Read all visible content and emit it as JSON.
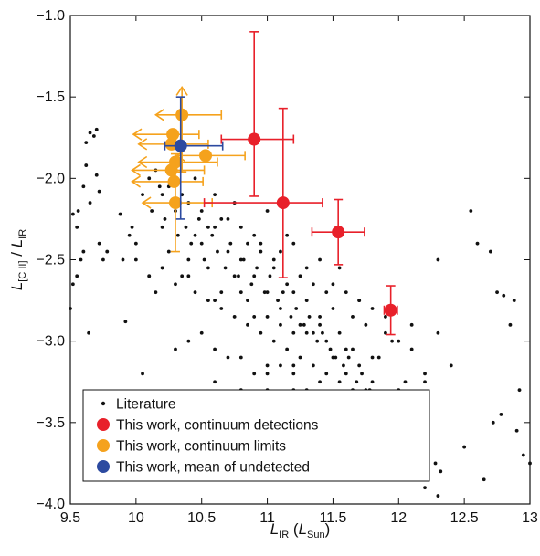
{
  "chart_data": {
    "type": "scatter",
    "title": "",
    "xlabel": {
      "main": "L",
      "sub": "IR",
      "rest_open": " (",
      "unit_main": "L",
      "unit_sub": "Sun",
      "rest_close": ")"
    },
    "ylabel": {
      "main": "L",
      "sub": "[C II]",
      "slash": " / ",
      "main2": "L",
      "sub2": "IR"
    },
    "xlim": [
      9.5,
      13
    ],
    "ylim": [
      -4.0,
      -1.0
    ],
    "xticks": [
      9.5,
      10,
      10.5,
      11,
      11.5,
      12,
      12.5,
      13
    ],
    "xtick_labels": [
      "9.5",
      "10",
      "10.5",
      "11",
      "11.5",
      "12",
      "12.5",
      "13"
    ],
    "yticks": [
      -4.0,
      -3.5,
      -3.0,
      -2.5,
      -2.0,
      -1.5,
      -1.0
    ],
    "ytick_labels": [
      "−4.0",
      "−3.5",
      "−3.0",
      "−2.5",
      "−2.0",
      "−1.5",
      "−1.0"
    ],
    "grid": false,
    "legend_position": "bottom-left",
    "legend": [
      {
        "label": "Literature",
        "color": "#111111",
        "marker": "small-dot"
      },
      {
        "label": "This work, continuum detections",
        "color": "#e8202a",
        "marker": "large-dot"
      },
      {
        "label": "This work, continuum limits",
        "color": "#f5a21d",
        "marker": "large-dot"
      },
      {
        "label": "This work, mean of undetected",
        "color": "#2c4aa0",
        "marker": "large-dot"
      }
    ],
    "colors": {
      "literature": "#111111",
      "detections": "#e8202a",
      "limits": "#f5a21d",
      "mean": "#2c4aa0"
    },
    "series": [
      {
        "name": "Literature",
        "x": [
          9.52,
          9.55,
          9.58,
          9.6,
          9.62,
          9.65,
          9.68,
          9.7,
          9.72,
          9.75,
          9.52,
          9.6,
          9.7,
          9.78,
          9.88,
          9.95,
          9.62,
          9.5,
          9.56,
          9.65,
          9.72,
          9.55,
          9.64,
          9.9,
          9.92,
          9.97,
          10.0,
          10.1,
          10.15,
          10.2,
          10.25,
          10.3,
          10.35,
          10.4,
          10.45,
          10.5,
          10.55,
          10.6,
          10.65,
          10.7,
          10.75,
          10.8,
          10.85,
          10.9,
          10.95,
          11.0,
          11.05,
          11.1,
          11.15,
          11.2,
          11.25,
          11.3,
          11.35,
          11.4,
          11.45,
          11.5,
          11.55,
          11.6,
          11.65,
          11.7,
          11.75,
          11.8,
          11.85,
          11.9,
          11.95,
          12.0,
          12.05,
          12.1,
          12.15,
          10.05,
          10.12,
          10.18,
          10.22,
          10.28,
          10.32,
          10.38,
          10.42,
          10.48,
          10.52,
          10.58,
          10.62,
          10.68,
          10.72,
          10.78,
          10.82,
          10.88,
          10.92,
          10.98,
          11.02,
          11.08,
          11.12,
          11.18,
          11.22,
          11.28,
          11.32,
          11.38,
          11.42,
          11.48,
          11.52,
          11.58,
          11.62,
          11.68,
          11.72,
          11.78,
          11.82,
          11.88,
          11.92,
          11.98,
          12.02,
          12.08,
          12.12,
          12.18,
          12.22,
          12.28,
          12.32,
          10.1,
          10.2,
          10.3,
          10.4,
          10.5,
          10.6,
          10.7,
          10.8,
          10.9,
          11.0,
          11.1,
          11.2,
          11.3,
          11.4,
          11.5,
          11.6,
          11.7,
          11.8,
          11.9,
          12.0,
          12.1,
          12.2,
          10.15,
          10.25,
          10.35,
          10.45,
          10.55,
          10.65,
          10.75,
          10.85,
          10.95,
          11.05,
          11.15,
          11.25,
          11.35,
          11.45,
          11.55,
          11.65,
          11.75,
          11.85,
          11.95,
          12.05,
          10.05,
          10.3,
          10.5,
          10.7,
          10.9,
          11.1,
          11.3,
          11.5,
          11.7,
          11.9,
          12.1,
          12.3,
          12.5,
          12.6,
          12.7,
          12.75,
          12.8,
          12.85,
          12.9,
          12.95,
          13.0,
          12.55,
          12.65,
          12.72,
          12.78,
          12.88,
          12.92,
          11.0,
          11.2,
          11.4,
          11.6,
          11.8,
          12.0,
          12.2,
          11.1,
          11.3,
          11.5,
          11.7,
          11.9,
          12.1,
          12.3,
          10.8,
          11.0,
          11.2,
          11.4,
          11.6,
          11.8,
          12.0,
          10.6,
          10.8,
          11.0,
          11.2,
          11.4,
          11.6,
          11.8,
          10.4,
          10.6,
          10.8,
          11.0,
          11.2,
          10.9,
          11.1,
          11.3,
          11.5,
          11.7,
          11.9,
          12.1,
          12.3,
          12.4,
          12.2,
          12.0,
          11.8,
          11.6,
          11.4,
          11.2,
          11.0,
          10.8,
          10.6,
          10.4,
          10.2,
          10.0,
          10.1,
          10.2,
          10.3,
          10.45,
          10.55,
          10.65,
          10.75,
          10.85,
          10.95,
          11.05,
          11.15,
          11.25,
          11.35,
          11.45,
          11.55,
          11.65,
          11.75,
          11.85,
          11.95
        ],
        "y": [
          -2.22,
          -2.3,
          -2.5,
          -2.45,
          -1.78,
          -1.72,
          -1.74,
          -1.7,
          -2.4,
          -2.5,
          -2.65,
          -2.05,
          -1.98,
          -2.45,
          -2.22,
          -2.35,
          -1.92,
          -2.8,
          -2.2,
          -2.15,
          -2.08,
          -2.6,
          -2.95,
          -2.5,
          -2.88,
          -2.3,
          -2.4,
          -2.6,
          -2.7,
          -2.3,
          -2.45,
          -2.2,
          -2.6,
          -2.5,
          -2.35,
          -2.4,
          -2.55,
          -2.3,
          -2.7,
          -2.45,
          -2.6,
          -2.5,
          -2.75,
          -2.6,
          -2.4,
          -2.7,
          -2.55,
          -2.8,
          -2.65,
          -2.7,
          -2.9,
          -2.75,
          -2.95,
          -2.85,
          -3.0,
          -3.1,
          -2.95,
          -3.2,
          -3.05,
          -3.15,
          -3.3,
          -3.25,
          -3.4,
          -3.35,
          -3.45,
          -3.5,
          -3.55,
          -3.65,
          -3.6,
          -2.1,
          -2.2,
          -2.05,
          -2.25,
          -2.15,
          -2.35,
          -2.3,
          -2.4,
          -2.25,
          -2.5,
          -2.35,
          -2.45,
          -2.55,
          -2.4,
          -2.6,
          -2.5,
          -2.65,
          -2.55,
          -2.7,
          -2.6,
          -2.75,
          -2.7,
          -2.85,
          -2.8,
          -2.9,
          -2.85,
          -3.0,
          -2.95,
          -3.05,
          -3.1,
          -3.15,
          -3.1,
          -3.25,
          -3.2,
          -3.3,
          -3.35,
          -3.4,
          -3.45,
          -3.5,
          -3.55,
          -3.6,
          -3.55,
          -3.7,
          -3.65,
          -3.75,
          -3.8,
          -2.0,
          -2.1,
          -2.0,
          -2.15,
          -2.2,
          -2.1,
          -2.25,
          -2.3,
          -2.35,
          -2.2,
          -2.45,
          -2.4,
          -2.55,
          -2.5,
          -2.65,
          -2.7,
          -2.75,
          -2.8,
          -2.95,
          -3.0,
          -3.05,
          -3.2,
          -1.95,
          -2.05,
          -2.1,
          -2.0,
          -2.3,
          -2.25,
          -2.15,
          -2.4,
          -2.45,
          -2.5,
          -2.35,
          -2.6,
          -2.65,
          -2.7,
          -2.55,
          -2.85,
          -2.9,
          -3.1,
          -3.0,
          -3.25,
          -3.2,
          -3.05,
          -2.95,
          -3.1,
          -3.2,
          -3.15,
          -3.3,
          -3.35,
          -3.4,
          -3.5,
          -3.45,
          -2.5,
          -3.65,
          -2.4,
          -2.45,
          -2.7,
          -2.72,
          -2.9,
          -3.55,
          -3.7,
          -3.75,
          -2.2,
          -3.85,
          -3.5,
          -3.45,
          -2.75,
          -3.3,
          -3.7,
          -3.3,
          -3.4,
          -3.6,
          -3.7,
          -3.8,
          -3.9,
          -3.5,
          -3.45,
          -3.6,
          -3.65,
          -3.55,
          -3.8,
          -3.95,
          -3.4,
          -3.3,
          -3.45,
          -3.5,
          -3.35,
          -3.4,
          -3.55,
          -3.25,
          -3.3,
          -3.2,
          -3.15,
          -3.25,
          -3.35,
          -3.45,
          -3.0,
          -3.05,
          -3.1,
          -3.15,
          -3.2,
          -2.85,
          -2.9,
          -2.95,
          -2.8,
          -2.75,
          -2.85,
          -2.9,
          -2.95,
          -3.15,
          -3.25,
          -3.3,
          -3.1,
          -3.05,
          -2.9,
          -2.95,
          -2.85,
          -2.7,
          -2.75,
          -2.6,
          -2.55,
          -2.5,
          -2.6,
          -2.55,
          -2.65,
          -2.7,
          -2.75,
          -2.8,
          -2.85,
          -2.9,
          -2.95,
          -3.0,
          -3.05,
          -3.1,
          -3.15,
          -3.2,
          -3.25,
          -3.3,
          -3.35,
          -3.4,
          -3.45
        ]
      },
      {
        "name": "This work, continuum detections",
        "points": [
          {
            "x": 10.9,
            "y": -1.76,
            "xerr_low": 0.25,
            "xerr_high": 0.3,
            "yerr_low": 0.35,
            "yerr_high": 0.66
          },
          {
            "x": 11.12,
            "y": -2.15,
            "xerr_low": 0.6,
            "xerr_high": 0.3,
            "yerr_low": 0.46,
            "yerr_high": 0.58
          },
          {
            "x": 11.54,
            "y": -2.33,
            "xerr_low": 0.2,
            "xerr_high": 0.2,
            "yerr_low": 0.2,
            "yerr_high": 0.2
          },
          {
            "x": 11.94,
            "y": -2.81,
            "xerr_low": 0.05,
            "xerr_high": 0.05,
            "yerr_low": 0.15,
            "yerr_high": 0.15
          }
        ]
      },
      {
        "name": "This work, continuum limits",
        "points": [
          {
            "x": 10.35,
            "y": -1.61,
            "xerr_low": 0.2,
            "xerr_high": 0.3,
            "yerr_low": 0.35,
            "yerr_high": 0.17,
            "up_arrow": true
          },
          {
            "x": 10.27,
            "y": -1.79,
            "xerr_low": 0.25,
            "xerr_high": 0.28,
            "yerr_low": 0.0,
            "yerr_high": 0.0
          },
          {
            "x": 10.27,
            "y": -1.95,
            "xerr_low": 0.3,
            "xerr_high": 0.25,
            "yerr_low": 0.0,
            "yerr_high": 0.0
          },
          {
            "x": 10.3,
            "y": -1.9,
            "xerr_low": 0.28,
            "xerr_high": 0.32,
            "yerr_low": 0.0,
            "yerr_high": 0.0
          },
          {
            "x": 10.3,
            "y": -2.15,
            "xerr_low": 0.25,
            "xerr_high": 0.28,
            "yerr_low": 0.3,
            "yerr_high": 0.3
          },
          {
            "x": 10.53,
            "y": -1.86,
            "xerr_low": 0.22,
            "xerr_high": 0.3,
            "yerr_low": 0.0,
            "yerr_high": 0.0
          },
          {
            "x": 10.28,
            "y": -1.73,
            "xerr_low": 0.3,
            "xerr_high": 0.2,
            "yerr_low": 0.0,
            "yerr_high": 0.0
          },
          {
            "x": 10.29,
            "y": -2.02,
            "xerr_low": 0.32,
            "xerr_high": 0.22,
            "yerr_low": 0.0,
            "yerr_high": 0.0
          }
        ]
      },
      {
        "name": "This work, mean of undetected",
        "points": [
          {
            "x": 10.34,
            "y": -1.8,
            "xerr_low": 0.12,
            "xerr_high": 0.32,
            "yerr_low": 0.45,
            "yerr_high": 0.3
          }
        ]
      }
    ]
  }
}
